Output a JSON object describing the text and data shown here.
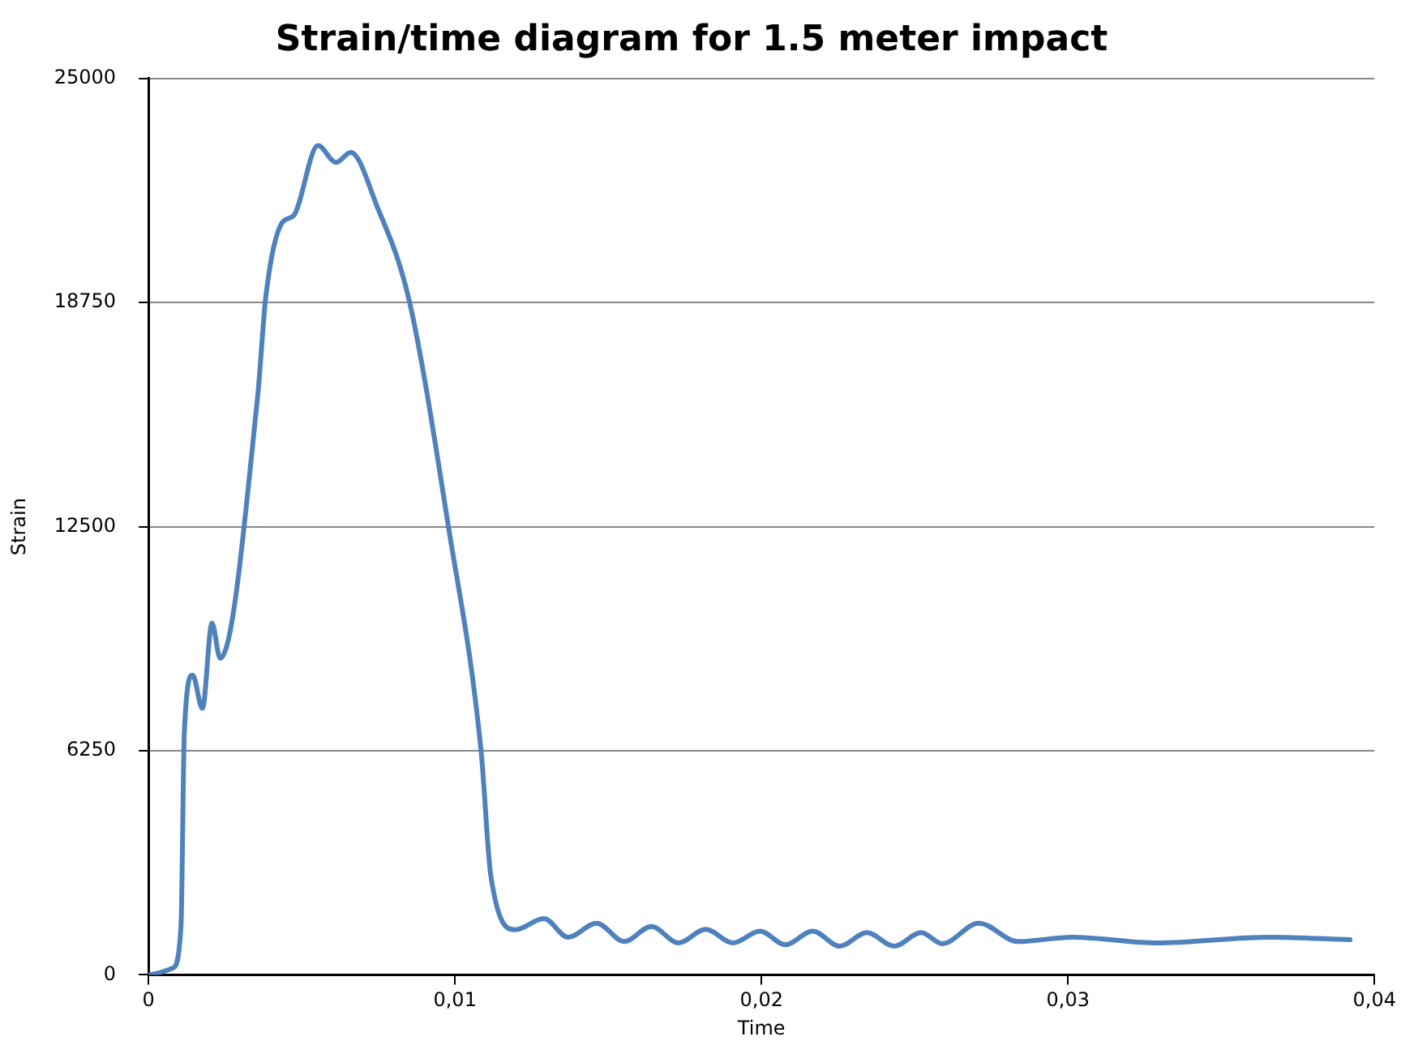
{
  "chart_data": {
    "type": "line",
    "title": "Strain/time diagram for 1.5 meter impact",
    "xlabel": "Time",
    "ylabel": "Strain",
    "x": [
      0,
      0.0008,
      0.00106,
      0.00117,
      0.00144,
      0.00176,
      0.00207,
      0.00234,
      0.00356,
      0.00383,
      0.00436,
      0.00473,
      0.00553,
      0.00612,
      0.0066,
      0.00745,
      0.00851,
      0.00979,
      0.01085,
      0.01117,
      0.01197,
      0.0129,
      0.01369,
      0.01462,
      0.01552,
      0.01641,
      0.01729,
      0.01818,
      0.01907,
      0.01995,
      0.02078,
      0.02167,
      0.02255,
      0.02344,
      0.02433,
      0.02521,
      0.0259,
      0.02709,
      0.02837,
      0.03014,
      0.0329,
      0.03654,
      0.0392
    ],
    "series": [
      {
        "color": "#4f81bd",
        "values": [
          0,
          190,
          1350,
          6780,
          8360,
          7430,
          9810,
          8830,
          16120,
          18930,
          20980,
          21170,
          23130,
          22660,
          22940,
          21450,
          18790,
          12480,
          6260,
          2760,
          1260,
          1570,
          1050,
          1440,
          930,
          1350,
          890,
          1270,
          890,
          1220,
          840,
          1220,
          800,
          1180,
          800,
          1180,
          870,
          1440,
          930,
          1050,
          890,
          1050,
          980
        ]
      }
    ],
    "xlim": [
      0,
      0.04
    ],
    "xticks": [
      0,
      {
        "value": 0.01,
        "label": "0,01"
      },
      {
        "value": 0.02,
        "label": "0,02"
      },
      {
        "value": 0.03,
        "label": "0,03"
      },
      {
        "value": 0.04,
        "label": "0,04"
      }
    ],
    "ylim": [
      0,
      25000
    ],
    "yticks": [
      0,
      6250,
      12500,
      18750,
      25000
    ],
    "grid": "y",
    "legend": false,
    "marker": "none",
    "line_style": "solid"
  }
}
